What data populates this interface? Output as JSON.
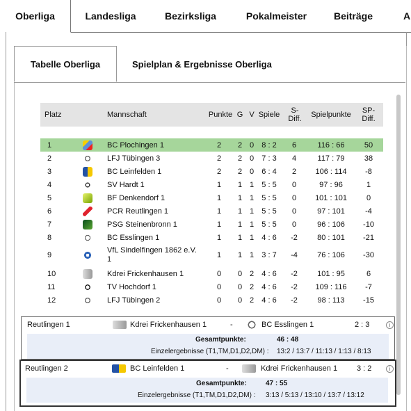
{
  "top_tabs": [
    "Oberliga",
    "Landesliga",
    "Bezirksliga",
    "Pokalmeister",
    "Beiträge",
    "A"
  ],
  "sub_tabs": [
    "Tabelle Oberliga",
    "Spielplan & Ergebnisse Oberliga"
  ],
  "table_headers": {
    "platz": "Platz",
    "mannschaft": "Mannschaft",
    "punkte": "Punkte",
    "g": "G",
    "v": "V",
    "spiele": "Spiele",
    "sdiff": "S-\nDiff.",
    "spielpunkte": "Spielpunkte",
    "spdiff": "SP-\nDiff."
  },
  "rows": [
    {
      "platz": "1",
      "team": "BC Plochingen 1",
      "punkte": "2",
      "g": "2",
      "v": "0",
      "spiele": "8 : 2",
      "sdiff": "6",
      "spielpunkte": "116 : 66",
      "spdiff": "50"
    },
    {
      "platz": "2",
      "team": "LFJ Tübingen 3",
      "punkte": "2",
      "g": "2",
      "v": "0",
      "spiele": "7 : 3",
      "sdiff": "4",
      "spielpunkte": "117 : 79",
      "spdiff": "38"
    },
    {
      "platz": "3",
      "team": "BC Leinfelden 1",
      "punkte": "2",
      "g": "2",
      "v": "0",
      "spiele": "6 : 4",
      "sdiff": "2",
      "spielpunkte": "106 : 114",
      "spdiff": "-8"
    },
    {
      "platz": "4",
      "team": "SV Hardt 1",
      "punkte": "1",
      "g": "1",
      "v": "1",
      "spiele": "5 : 5",
      "sdiff": "0",
      "spielpunkte": "97 : 96",
      "spdiff": "1"
    },
    {
      "platz": "5",
      "team": "BF Denkendorf 1",
      "punkte": "1",
      "g": "1",
      "v": "1",
      "spiele": "5 : 5",
      "sdiff": "0",
      "spielpunkte": "101 : 101",
      "spdiff": "0"
    },
    {
      "platz": "6",
      "team": "PCR Reutlingen 1",
      "punkte": "1",
      "g": "1",
      "v": "1",
      "spiele": "5 : 5",
      "sdiff": "0",
      "spielpunkte": "97 : 101",
      "spdiff": "-4"
    },
    {
      "platz": "7",
      "team": "PSG Steinenbronn 1",
      "punkte": "1",
      "g": "1",
      "v": "1",
      "spiele": "5 : 5",
      "sdiff": "0",
      "spielpunkte": "96 : 106",
      "spdiff": "-10"
    },
    {
      "platz": "8",
      "team": "BC Esslingen 1",
      "punkte": "1",
      "g": "1",
      "v": "1",
      "spiele": "4 : 6",
      "sdiff": "-2",
      "spielpunkte": "80 : 101",
      "spdiff": "-21"
    },
    {
      "platz": "9",
      "team": "VfL Sindelfingen 1862 e.V. 1",
      "punkte": "1",
      "g": "1",
      "v": "1",
      "spiele": "3 : 7",
      "sdiff": "-4",
      "spielpunkte": "76 : 106",
      "spdiff": "-30"
    },
    {
      "platz": "10",
      "team": "Kdrei Frickenhausen 1",
      "punkte": "0",
      "g": "0",
      "v": "2",
      "spiele": "4 : 6",
      "sdiff": "-2",
      "spielpunkte": "101 : 95",
      "spdiff": "6"
    },
    {
      "platz": "11",
      "team": "TV Hochdorf 1",
      "punkte": "0",
      "g": "0",
      "v": "2",
      "spiele": "4 : 6",
      "sdiff": "-2",
      "spielpunkte": "109 : 116",
      "spdiff": "-7"
    },
    {
      "platz": "12",
      "team": "LFJ Tübingen 2",
      "punkte": "0",
      "g": "0",
      "v": "2",
      "spiele": "4 : 6",
      "sdiff": "-2",
      "spielpunkte": "98 : 113",
      "spdiff": "-15"
    }
  ],
  "match1": {
    "home": "Reutlingen  1",
    "left_team": "Kdrei Frickenhausen 1",
    "dash": "-",
    "right_team": "BC Esslingen 1",
    "score": "2 : 3",
    "gesamt_label": "Gesamtpunkte:",
    "gesamt_value": "46 : 48",
    "einzel_label": "Einzelergebnisse (T1,TM,D1,D2,DM) :",
    "einzel_value": "13:2 / 13:7 / 11:13 / 1:13 / 8:13"
  },
  "match2": {
    "home": "Reutlingen  2",
    "left_team": "BC Leinfelden 1",
    "dash": "-",
    "right_team": "Kdrei Frickenhausen 1",
    "score": "3 : 2",
    "gesamt_label": "Gesamtpunkte:",
    "gesamt_value": "47 : 55",
    "einzel_label": "Einzelergebnisse (T1,TM,D1,D2,DM) :",
    "einzel_value": "3:13 / 5:13 / 13:10 / 13:7 / 13:12"
  },
  "colors": {
    "highlight": "#a6d69b",
    "header_bg": "#e4e4e4",
    "detail_bg": "#e9eef8"
  }
}
